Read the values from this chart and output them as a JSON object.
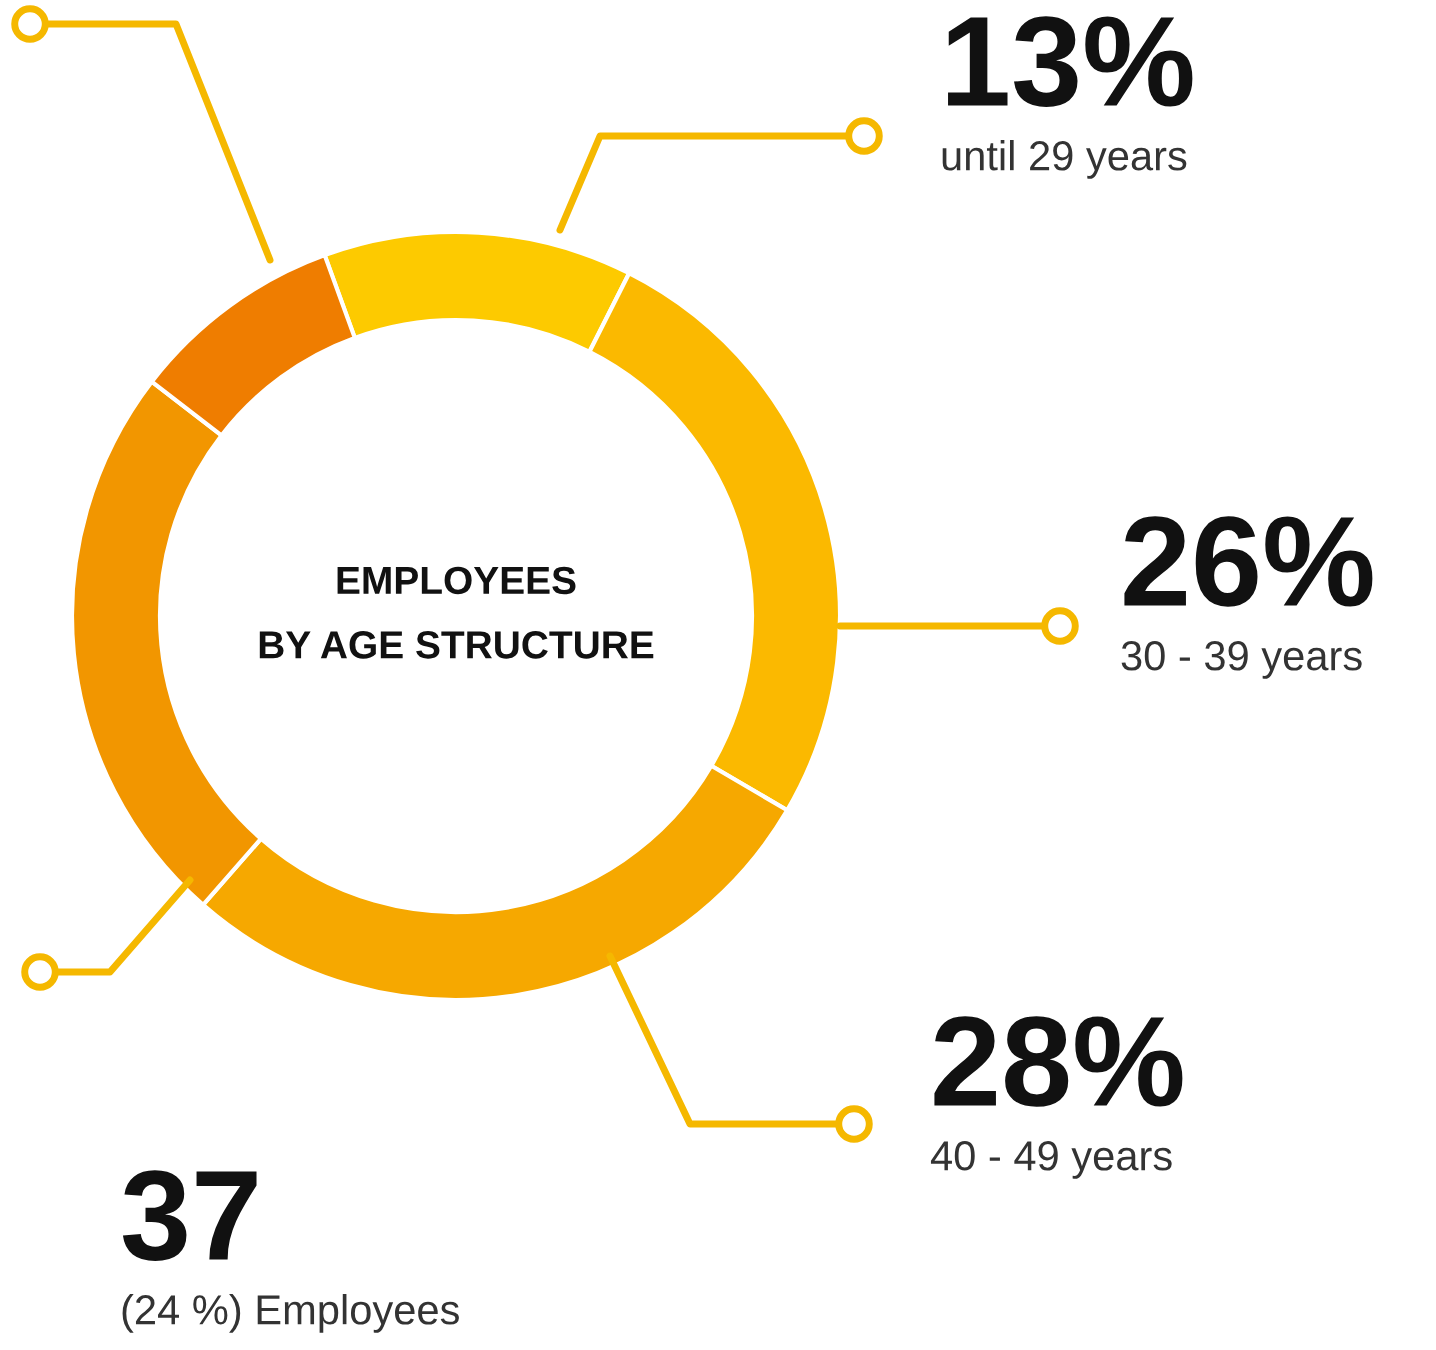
{
  "chart_data": {
    "type": "donut",
    "title": "EMPLOYEES\nBY AGE STRUCTURE",
    "categories": [
      "until 29 years",
      "30 - 39 years",
      "40 - 49 years",
      null,
      null
    ],
    "annotations": [
      "37",
      "(24 %) Employees"
    ],
    "values": [
      13,
      26,
      28,
      24,
      9
    ],
    "value_labels": [
      "13%",
      "26%",
      "28%",
      null,
      null
    ],
    "colors": [
      "#fdca00",
      "#fbb900",
      "#f6a800",
      "#f29600",
      "#ef7d00"
    ]
  }
}
